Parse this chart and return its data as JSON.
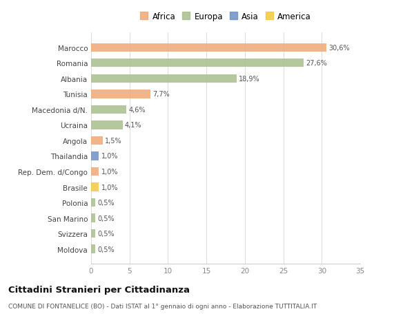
{
  "countries": [
    "Marocco",
    "Romania",
    "Albania",
    "Tunisia",
    "Macedonia d/N.",
    "Ucraina",
    "Angola",
    "Thailandia",
    "Rep. Dem. d/Congo",
    "Brasile",
    "Polonia",
    "San Marino",
    "Svizzera",
    "Moldova"
  ],
  "values": [
    30.6,
    27.6,
    18.9,
    7.7,
    4.6,
    4.1,
    1.5,
    1.0,
    1.0,
    1.0,
    0.5,
    0.5,
    0.5,
    0.5
  ],
  "labels": [
    "30,6%",
    "27,6%",
    "18,9%",
    "7,7%",
    "4,6%",
    "4,1%",
    "1,5%",
    "1,0%",
    "1,0%",
    "1,0%",
    "0,5%",
    "0,5%",
    "0,5%",
    "0,5%"
  ],
  "colors": [
    "#f0a875",
    "#a8be8c",
    "#a8be8c",
    "#f0a875",
    "#a8be8c",
    "#a8be8c",
    "#f0a875",
    "#6e8fc4",
    "#f0a875",
    "#f5c842",
    "#a8be8c",
    "#a8be8c",
    "#a8be8c",
    "#a8be8c"
  ],
  "legend_labels": [
    "Africa",
    "Europa",
    "Asia",
    "America"
  ],
  "legend_colors": [
    "#f0a875",
    "#a8be8c",
    "#6e8fc4",
    "#f5c842"
  ],
  "title": "Cittadini Stranieri per Cittadinanza",
  "subtitle": "COMUNE DI FONTANELICE (BO) - Dati ISTAT al 1° gennaio di ogni anno - Elaborazione TUTTITALIA.IT",
  "xlim": [
    0,
    35
  ],
  "xticks": [
    0,
    5,
    10,
    15,
    20,
    25,
    30,
    35
  ],
  "bg_color": "#ffffff",
  "bar_height": 0.55
}
